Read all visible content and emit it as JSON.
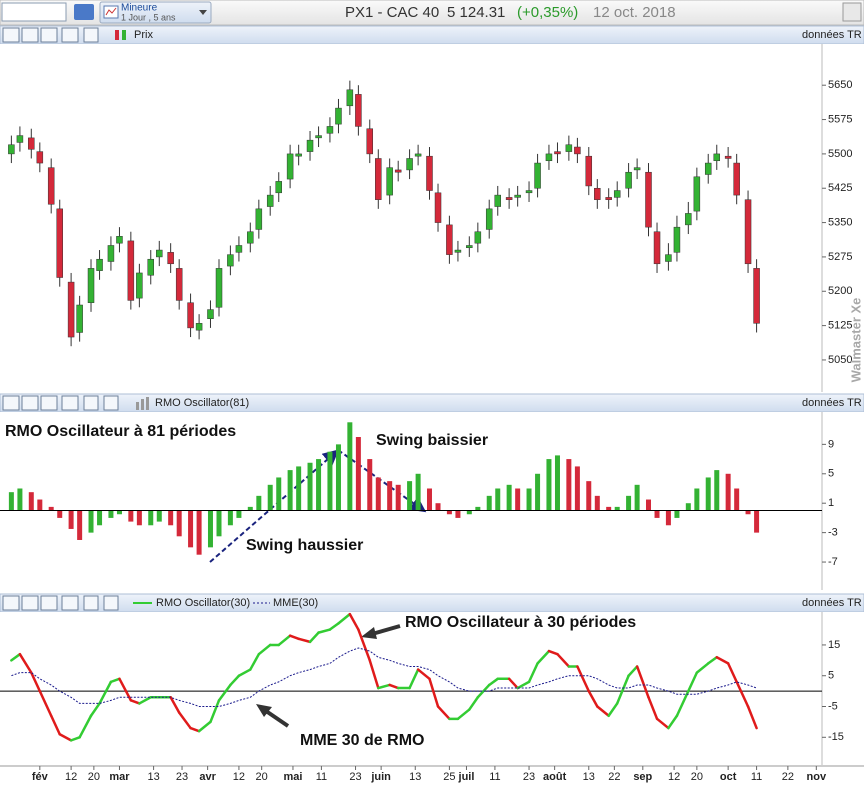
{
  "header": {
    "symbol": "PX1 - CAC 40",
    "price": "5 124.31",
    "change": "(+0,35%)",
    "date": "12 oct. 2018",
    "mode": "Mineure",
    "period": "1 Jour , 5 ans",
    "watermark": "Walmaster Xe"
  },
  "chart_data": [
    {
      "type": "candlestick",
      "source": "données TR",
      "x": [
        "2018-01-22",
        "2018-01-25",
        "2018-01-29",
        "2018-02-01",
        "2018-02-05",
        "2018-02-08",
        "2018-02-12",
        "2018-02-15",
        "2018-02-19",
        "2018-02-22",
        "2018-02-26",
        "2018-03-01",
        "2018-03-05",
        "2018-03-08",
        "2018-03-12",
        "2018-03-15",
        "2018-03-19",
        "2018-03-22",
        "2018-03-26",
        "2018-03-29",
        "2018-04-02",
        "2018-04-05",
        "2018-04-09",
        "2018-04-12",
        "2018-04-16",
        "2018-04-19",
        "2018-04-23",
        "2018-04-26",
        "2018-04-30",
        "2018-05-03",
        "2018-05-07",
        "2018-05-10",
        "2018-05-14",
        "2018-05-17",
        "2018-05-21",
        "2018-05-24",
        "2018-05-28",
        "2018-05-31",
        "2018-06-04",
        "2018-06-07",
        "2018-06-11",
        "2018-06-14",
        "2018-06-18",
        "2018-06-21",
        "2018-06-25",
        "2018-06-28",
        "2018-07-02",
        "2018-07-05",
        "2018-07-09",
        "2018-07-12",
        "2018-07-16",
        "2018-07-19",
        "2018-07-23",
        "2018-07-26",
        "2018-07-30",
        "2018-08-02",
        "2018-08-06",
        "2018-08-09",
        "2018-08-13",
        "2018-08-16",
        "2018-08-20",
        "2018-08-23",
        "2018-08-27",
        "2018-08-30",
        "2018-09-03",
        "2018-09-06",
        "2018-09-10",
        "2018-09-13",
        "2018-09-17",
        "2018-09-20",
        "2018-09-24",
        "2018-09-27",
        "2018-10-01",
        "2018-10-04",
        "2018-10-08",
        "2018-10-11"
      ],
      "series": [
        {
          "name": "Prix",
          "open": [
            5500,
            5525,
            5535,
            5505,
            5470,
            5380,
            5220,
            5110,
            5175,
            5245,
            5265,
            5305,
            5310,
            5185,
            5235,
            5275,
            5285,
            5250,
            5175,
            5115,
            5140,
            5165,
            5255,
            5285,
            5305,
            5335,
            5385,
            5415,
            5445,
            5495,
            5505,
            5535,
            5545,
            5565,
            5605,
            5630,
            5555,
            5490,
            5410,
            5465,
            5465,
            5495,
            5495,
            5415,
            5345,
            5285,
            5295,
            5305,
            5335,
            5385,
            5405,
            5405,
            5415,
            5425,
            5485,
            5505,
            5505,
            5515,
            5495,
            5425,
            5405,
            5405,
            5425,
            5465,
            5460,
            5330,
            5265,
            5285,
            5345,
            5375,
            5455,
            5485,
            5495,
            5480,
            5400,
            5250
          ],
          "high": [
            5540,
            5560,
            5555,
            5525,
            5490,
            5400,
            5240,
            5190,
            5270,
            5290,
            5320,
            5340,
            5330,
            5260,
            5290,
            5310,
            5305,
            5270,
            5195,
            5150,
            5180,
            5270,
            5300,
            5320,
            5350,
            5400,
            5430,
            5460,
            5520,
            5520,
            5550,
            5560,
            5580,
            5620,
            5660,
            5650,
            5575,
            5510,
            5490,
            5485,
            5510,
            5520,
            5515,
            5435,
            5365,
            5310,
            5320,
            5350,
            5400,
            5430,
            5425,
            5430,
            5440,
            5500,
            5520,
            5525,
            5540,
            5535,
            5515,
            5445,
            5425,
            5440,
            5480,
            5490,
            5480,
            5350,
            5305,
            5365,
            5395,
            5470,
            5500,
            5520,
            5515,
            5500,
            5420,
            5270
          ],
          "low": [
            5480,
            5505,
            5490,
            5460,
            5370,
            5210,
            5080,
            5090,
            5155,
            5225,
            5245,
            5285,
            5160,
            5165,
            5215,
            5255,
            5240,
            5160,
            5100,
            5095,
            5120,
            5145,
            5235,
            5265,
            5285,
            5315,
            5365,
            5395,
            5425,
            5475,
            5485,
            5515,
            5525,
            5545,
            5585,
            5540,
            5480,
            5380,
            5390,
            5440,
            5445,
            5475,
            5400,
            5330,
            5260,
            5265,
            5275,
            5285,
            5315,
            5365,
            5380,
            5385,
            5395,
            5405,
            5465,
            5480,
            5485,
            5480,
            5410,
            5380,
            5380,
            5385,
            5405,
            5445,
            5320,
            5240,
            5245,
            5265,
            5325,
            5355,
            5435,
            5465,
            5470,
            5390,
            5240,
            5110
          ],
          "close": [
            5520,
            5540,
            5510,
            5480,
            5390,
            5230,
            5100,
            5170,
            5250,
            5270,
            5300,
            5320,
            5180,
            5240,
            5270,
            5290,
            5260,
            5180,
            5120,
            5130,
            5160,
            5250,
            5280,
            5300,
            5330,
            5380,
            5410,
            5440,
            5500,
            5500,
            5530,
            5540,
            5560,
            5600,
            5640,
            5560,
            5500,
            5400,
            5470,
            5460,
            5490,
            5500,
            5420,
            5350,
            5280,
            5290,
            5300,
            5330,
            5380,
            5410,
            5400,
            5410,
            5420,
            5480,
            5500,
            5500,
            5520,
            5500,
            5430,
            5400,
            5400,
            5420,
            5460,
            5470,
            5340,
            5260,
            5280,
            5340,
            5370,
            5450,
            5480,
            5500,
            5490,
            5410,
            5260,
            5130
          ],
          "up_color": "#33b233",
          "down_color": "#d4293a"
        }
      ],
      "xlim": [
        "2018-01-18",
        "2018-11-03"
      ],
      "ylim": [
        4980,
        5740
      ],
      "yticks": [
        5050,
        5125,
        5200,
        5275,
        5350,
        5425,
        5500,
        5575,
        5650
      ]
    },
    {
      "type": "bar",
      "source": "données TR",
      "x": [
        "2018-01-22",
        "2018-01-25",
        "2018-01-29",
        "2018-02-01",
        "2018-02-05",
        "2018-02-08",
        "2018-02-12",
        "2018-02-15",
        "2018-02-19",
        "2018-02-22",
        "2018-02-26",
        "2018-03-01",
        "2018-03-05",
        "2018-03-08",
        "2018-03-12",
        "2018-03-15",
        "2018-03-19",
        "2018-03-22",
        "2018-03-26",
        "2018-03-29",
        "2018-04-02",
        "2018-04-05",
        "2018-04-09",
        "2018-04-12",
        "2018-04-16",
        "2018-04-19",
        "2018-04-23",
        "2018-04-26",
        "2018-04-30",
        "2018-05-03",
        "2018-05-07",
        "2018-05-10",
        "2018-05-14",
        "2018-05-17",
        "2018-05-21",
        "2018-05-24",
        "2018-05-28",
        "2018-05-31",
        "2018-06-04",
        "2018-06-07",
        "2018-06-11",
        "2018-06-14",
        "2018-06-18",
        "2018-06-21",
        "2018-06-25",
        "2018-06-28",
        "2018-07-02",
        "2018-07-05",
        "2018-07-09",
        "2018-07-12",
        "2018-07-16",
        "2018-07-19",
        "2018-07-23",
        "2018-07-26",
        "2018-07-30",
        "2018-08-02",
        "2018-08-06",
        "2018-08-09",
        "2018-08-13",
        "2018-08-16",
        "2018-08-20",
        "2018-08-23",
        "2018-08-27",
        "2018-08-30",
        "2018-09-03",
        "2018-09-06",
        "2018-09-10",
        "2018-09-13",
        "2018-09-17",
        "2018-09-20",
        "2018-09-24",
        "2018-09-27",
        "2018-10-01",
        "2018-10-04",
        "2018-10-08",
        "2018-10-11"
      ],
      "series": [
        {
          "name": "RMO Oscillator(81)",
          "values": [
            2.5,
            3,
            2.5,
            1.5,
            0.5,
            -1,
            -2.5,
            -4,
            -3,
            -2,
            -1,
            -0.5,
            -1.5,
            -2,
            -2,
            -1.5,
            -2,
            -3.5,
            -5,
            -6,
            -5,
            -3.5,
            -2,
            -1,
            0.5,
            2,
            3.5,
            4.5,
            5.5,
            6,
            6.5,
            7,
            8,
            9,
            12,
            10,
            7,
            4.5,
            4,
            3.5,
            4,
            5,
            3,
            1,
            -0.5,
            -1,
            -0.5,
            0.5,
            2,
            3,
            3.5,
            3,
            3,
            5,
            7,
            7.5,
            7,
            6,
            4,
            2,
            0.5,
            0.5,
            2,
            3.5,
            1.5,
            -1,
            -2,
            -1,
            1,
            3,
            4.5,
            5.5,
            5,
            3,
            -0.5,
            -3
          ],
          "up_color": "#33b233",
          "down_color": "#d4293a"
        }
      ],
      "xlim": [
        "2018-01-18",
        "2018-11-03"
      ],
      "ylim": [
        -10.8,
        13.4
      ],
      "yticks": [
        -7,
        -3,
        1,
        5,
        9
      ],
      "annotations": [
        "RMO Oscillateur à 81 périodes",
        "Swing baissier",
        "Swing haussier"
      ]
    },
    {
      "type": "line",
      "source": "données TR",
      "x": [
        "2018-01-22",
        "2018-01-25",
        "2018-01-29",
        "2018-02-01",
        "2018-02-05",
        "2018-02-08",
        "2018-02-12",
        "2018-02-15",
        "2018-02-19",
        "2018-02-22",
        "2018-02-26",
        "2018-03-01",
        "2018-03-05",
        "2018-03-08",
        "2018-03-12",
        "2018-03-15",
        "2018-03-19",
        "2018-03-22",
        "2018-03-26",
        "2018-03-29",
        "2018-04-02",
        "2018-04-05",
        "2018-04-09",
        "2018-04-12",
        "2018-04-16",
        "2018-04-19",
        "2018-04-23",
        "2018-04-26",
        "2018-04-30",
        "2018-05-03",
        "2018-05-07",
        "2018-05-10",
        "2018-05-14",
        "2018-05-17",
        "2018-05-21",
        "2018-05-24",
        "2018-05-28",
        "2018-05-31",
        "2018-06-04",
        "2018-06-07",
        "2018-06-11",
        "2018-06-14",
        "2018-06-18",
        "2018-06-21",
        "2018-06-25",
        "2018-06-28",
        "2018-07-02",
        "2018-07-05",
        "2018-07-09",
        "2018-07-12",
        "2018-07-16",
        "2018-07-19",
        "2018-07-23",
        "2018-07-26",
        "2018-07-30",
        "2018-08-02",
        "2018-08-06",
        "2018-08-09",
        "2018-08-13",
        "2018-08-16",
        "2018-08-20",
        "2018-08-23",
        "2018-08-27",
        "2018-08-30",
        "2018-09-03",
        "2018-09-06",
        "2018-09-10",
        "2018-09-13",
        "2018-09-17",
        "2018-09-20",
        "2018-09-24",
        "2018-09-27",
        "2018-10-01",
        "2018-10-04",
        "2018-10-08",
        "2018-10-11"
      ],
      "series": [
        {
          "name": "RMO Oscillator(30)",
          "values": [
            10,
            12,
            6,
            0,
            -8,
            -14,
            -16,
            -15,
            -8,
            -4,
            3,
            4,
            -3,
            -4,
            -2,
            -2,
            -2,
            -7,
            -12,
            -13,
            -10,
            -3,
            2,
            5,
            7,
            12,
            15,
            15,
            18,
            17,
            16,
            19,
            20,
            22,
            25,
            20,
            10,
            1,
            2,
            1,
            1,
            7,
            4,
            -5,
            -9,
            -9,
            -6,
            -2,
            2,
            4,
            4,
            1,
            3,
            9,
            13,
            12,
            8,
            8,
            0,
            -5,
            -8,
            -4,
            5,
            8,
            -2,
            -9,
            -12,
            -8,
            0,
            6,
            9,
            11,
            9,
            3,
            -5,
            -12
          ],
          "up_color": "#33cc33",
          "down_color": "#e01b1b"
        },
        {
          "name": "MME(30)",
          "color": "#1a1a8c",
          "style": "dotted",
          "values": [
            5,
            6,
            6,
            4,
            2,
            0,
            -2,
            -4,
            -4,
            -4,
            -3,
            -2,
            -2,
            -2,
            -2,
            -2,
            -2,
            -3,
            -4,
            -5,
            -5,
            -5,
            -4,
            -3,
            -2,
            0,
            2,
            3,
            5,
            6,
            7,
            8,
            9,
            11,
            13,
            14,
            13,
            11,
            10,
            9,
            8,
            8,
            7,
            5,
            3,
            1,
            0,
            0,
            0,
            1,
            1,
            1,
            1,
            2,
            3,
            4,
            5,
            5,
            5,
            4,
            2,
            1,
            1,
            2,
            2,
            1,
            0,
            -1,
            -1,
            -1,
            0,
            1,
            2,
            3,
            2,
            1
          ]
        }
      ],
      "xlim": [
        "2018-01-18",
        "2018-11-03"
      ],
      "ylim": [
        -24,
        25.7
      ],
      "yticks": [
        -15,
        -5,
        5,
        15
      ],
      "xticks": [
        {
          "value": "2018-02-01",
          "label": "fév"
        },
        {
          "value": "2018-02-12",
          "label": "12"
        },
        {
          "value": "2018-02-20",
          "label": "20"
        },
        {
          "value": "2018-03-01",
          "label": "mar"
        },
        {
          "value": "2018-03-13",
          "label": "13"
        },
        {
          "value": "2018-03-23",
          "label": "23"
        },
        {
          "value": "2018-04-01",
          "label": "avr"
        },
        {
          "value": "2018-04-12",
          "label": "12"
        },
        {
          "value": "2018-04-20",
          "label": "20"
        },
        {
          "value": "2018-05-01",
          "label": "mai"
        },
        {
          "value": "2018-05-11",
          "label": "11"
        },
        {
          "value": "2018-05-23",
          "label": "23"
        },
        {
          "value": "2018-06-01",
          "label": "juin"
        },
        {
          "value": "2018-06-13",
          "label": "13"
        },
        {
          "value": "2018-06-25",
          "label": "25"
        },
        {
          "value": "2018-07-01",
          "label": "juil"
        },
        {
          "value": "2018-07-11",
          "label": "11"
        },
        {
          "value": "2018-07-23",
          "label": "23"
        },
        {
          "value": "2018-08-01",
          "label": "août"
        },
        {
          "value": "2018-08-13",
          "label": "13"
        },
        {
          "value": "2018-08-22",
          "label": "22"
        },
        {
          "value": "2018-09-01",
          "label": "sep"
        },
        {
          "value": "2018-09-12",
          "label": "12"
        },
        {
          "value": "2018-09-20",
          "label": "20"
        },
        {
          "value": "2018-10-01",
          "label": "oct"
        },
        {
          "value": "2018-10-11",
          "label": "11"
        },
        {
          "value": "2018-10-22",
          "label": "22"
        },
        {
          "value": "2018-11-01",
          "label": "nov"
        }
      ],
      "annotations": [
        "RMO Oscillateur à 30 périodes",
        "MME 30 de RMO"
      ]
    }
  ]
}
